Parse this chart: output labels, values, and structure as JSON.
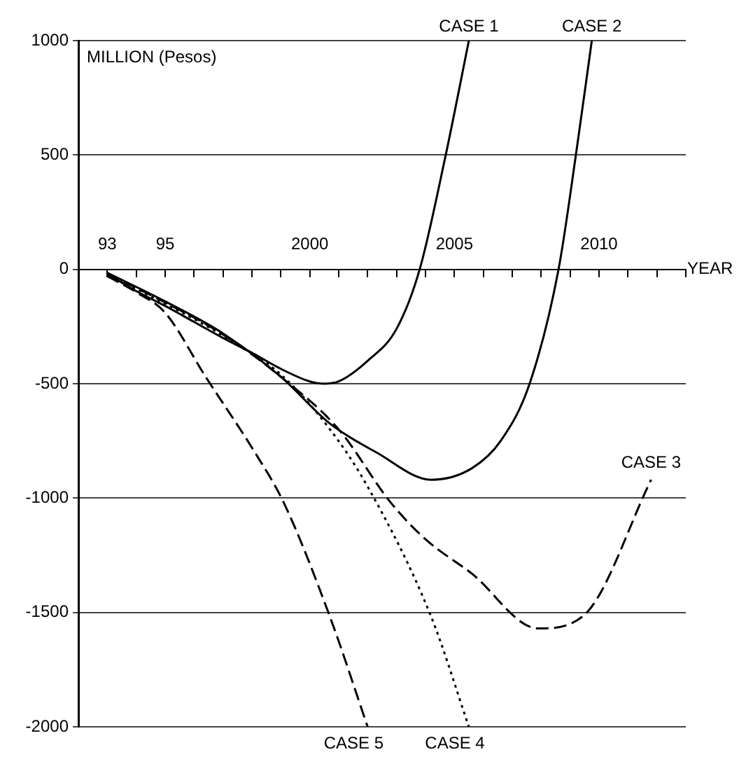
{
  "chart_data": {
    "type": "line",
    "xlabel": "YEAR",
    "ylabel": "MILLION (Pesos)",
    "xlim": [
      1992,
      2013
    ],
    "xticks": [
      {
        "value": 1993,
        "label": "93"
      },
      {
        "value": 1994,
        "label": null
      },
      {
        "value": 1995,
        "label": "95"
      },
      {
        "value": 1996,
        "label": null
      },
      {
        "value": 1997,
        "label": null
      },
      {
        "value": 1998,
        "label": null
      },
      {
        "value": 1999,
        "label": null
      },
      2000,
      {
        "value": 2001,
        "label": null
      },
      {
        "value": 2002,
        "label": null
      },
      {
        "value": 2003,
        "label": null
      },
      {
        "value": 2004,
        "label": null
      },
      2005,
      {
        "value": 2006,
        "label": null
      },
      {
        "value": 2007,
        "label": null
      },
      {
        "value": 2008,
        "label": null
      },
      {
        "value": 2009,
        "label": null
      },
      2010,
      {
        "value": 2011,
        "label": null
      },
      {
        "value": 2012,
        "label": null
      },
      {
        "value": 2013,
        "label": null
      }
    ],
    "ylim": [
      -2000,
      1000
    ],
    "yticks": [
      -2000,
      -1500,
      -1000,
      -500,
      0,
      500,
      1000
    ],
    "grid": "y",
    "legend": false,
    "marker": "none",
    "series": [
      {
        "name": "CASE 1",
        "color": "#000000",
        "line_style": "solid",
        "x": [
          1993,
          1994,
          1995,
          1996,
          1997,
          1998,
          1999,
          2000,
          2000.5,
          2001,
          2002,
          2003,
          2003.8,
          2004.7,
          2005.5
        ],
        "values": [
          -20,
          -95,
          -160,
          -230,
          -300,
          -365,
          -435,
          -490,
          -500,
          -490,
          -400,
          -260,
          0,
          500,
          1000
        ]
      },
      {
        "name": "CASE 2",
        "color": "#000000",
        "line_style": "solid",
        "x": [
          1993,
          1995,
          1997,
          1999,
          2000.7,
          2002.3,
          2004.2,
          2005.6,
          2006.6,
          2007.6,
          2008.6,
          2009.2,
          2009.75
        ],
        "values": [
          -15,
          -140,
          -280,
          -470,
          -675,
          -800,
          -920,
          -870,
          -750,
          -500,
          0,
          500,
          1000
        ]
      },
      {
        "name": "CASE 3",
        "color": "#000000",
        "line_style": "dashed",
        "x": [
          1993,
          1995,
          1997,
          1999,
          2001,
          2002.8,
          2004,
          2005.6,
          2007.9,
          2009.5,
          2011.8
        ],
        "values": [
          -20,
          -145,
          -285,
          -470,
          -700,
          -1020,
          -1180,
          -1330,
          -1570,
          -1510,
          -920
        ]
      },
      {
        "name": "CASE 4",
        "color": "#000000",
        "line_style": "dotted",
        "x": [
          1993,
          1995,
          1997,
          1999,
          2000.7,
          2002,
          2004.2,
          2005.5
        ],
        "values": [
          -25,
          -150,
          -290,
          -460,
          -700,
          -950,
          -1520,
          -2000
        ]
      },
      {
        "name": "CASE 5",
        "color": "#000000",
        "line_style": "dashed",
        "x": [
          1993,
          1994,
          1995,
          1996.4,
          1998.1,
          1999.1,
          2000.7,
          2002
        ],
        "values": [
          -30,
          -100,
          -190,
          -470,
          -800,
          -1020,
          -1520,
          -2000
        ]
      }
    ]
  }
}
